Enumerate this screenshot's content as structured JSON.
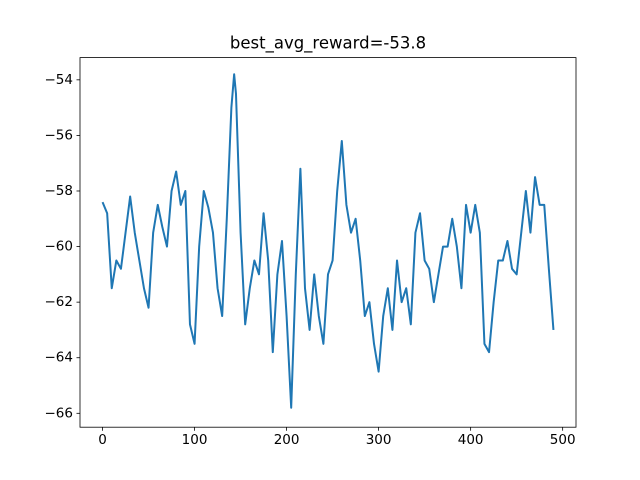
{
  "chart_data": {
    "type": "line",
    "title": "best_avg_reward=-53.8",
    "x": [
      0,
      5,
      10,
      15,
      20,
      25,
      30,
      35,
      40,
      45,
      50,
      55,
      60,
      65,
      70,
      75,
      80,
      85,
      90,
      95,
      100,
      105,
      110,
      115,
      120,
      125,
      130,
      135,
      140,
      143,
      145,
      150,
      155,
      160,
      165,
      170,
      175,
      180,
      185,
      190,
      195,
      200,
      205,
      210,
      215,
      220,
      225,
      230,
      235,
      240,
      245,
      250,
      255,
      260,
      265,
      270,
      275,
      280,
      285,
      290,
      295,
      300,
      305,
      310,
      315,
      320,
      325,
      330,
      335,
      340,
      345,
      350,
      355,
      360,
      365,
      370,
      375,
      380,
      385,
      390,
      395,
      400,
      405,
      410,
      415,
      420,
      425,
      430,
      435,
      440,
      445,
      450,
      455,
      460,
      465,
      470,
      475,
      480,
      485,
      490
    ],
    "series": [
      {
        "name": "reward",
        "color": "#1f77b4",
        "values": [
          -58.4,
          -58.8,
          -61.5,
          -60.5,
          -60.8,
          -59.5,
          -58.2,
          -59.5,
          -60.5,
          -61.5,
          -62.2,
          -59.5,
          -58.5,
          -59.3,
          -60.0,
          -58.0,
          -57.3,
          -58.5,
          -58.0,
          -62.8,
          -63.5,
          -60.0,
          -58.0,
          -58.6,
          -59.5,
          -61.5,
          -62.5,
          -59.0,
          -55.0,
          -53.8,
          -54.5,
          -59.5,
          -62.8,
          -61.5,
          -60.5,
          -61.0,
          -58.8,
          -60.5,
          -63.8,
          -61.0,
          -59.8,
          -62.5,
          -65.8,
          -61.0,
          -57.2,
          -61.5,
          -63.0,
          -61.0,
          -62.5,
          -63.5,
          -61.0,
          -60.5,
          -58.0,
          -56.2,
          -58.5,
          -59.5,
          -59.0,
          -60.5,
          -62.5,
          -62.0,
          -63.5,
          -64.5,
          -62.5,
          -61.5,
          -63.0,
          -60.5,
          -62.0,
          -61.5,
          -62.8,
          -59.5,
          -58.8,
          -60.5,
          -60.8,
          -62.0,
          -61.0,
          -60.0,
          -60.0,
          -59.0,
          -60.0,
          -61.5,
          -58.5,
          -59.5,
          -58.5,
          -59.5,
          -63.5,
          -63.8,
          -62.0,
          -60.5,
          -60.5,
          -59.8,
          -60.8,
          -61.0,
          -59.5,
          -58.0,
          -59.5,
          -57.5,
          -58.5,
          -58.5,
          -60.8,
          -63.0
        ]
      }
    ],
    "xlim": [
      -24.5,
      514.5
    ],
    "ylim": [
      -66.5,
      -53.2
    ],
    "xticks": [
      0,
      100,
      200,
      300,
      400,
      500
    ],
    "yticks": [
      {
        "value": -66,
        "label": "−66"
      },
      {
        "value": -64,
        "label": "−64"
      },
      {
        "value": -62,
        "label": "−62"
      },
      {
        "value": -60,
        "label": "−60"
      },
      {
        "value": -58,
        "label": "−58"
      },
      {
        "value": -56,
        "label": "−56"
      },
      {
        "value": -54,
        "label": "−54"
      }
    ]
  }
}
